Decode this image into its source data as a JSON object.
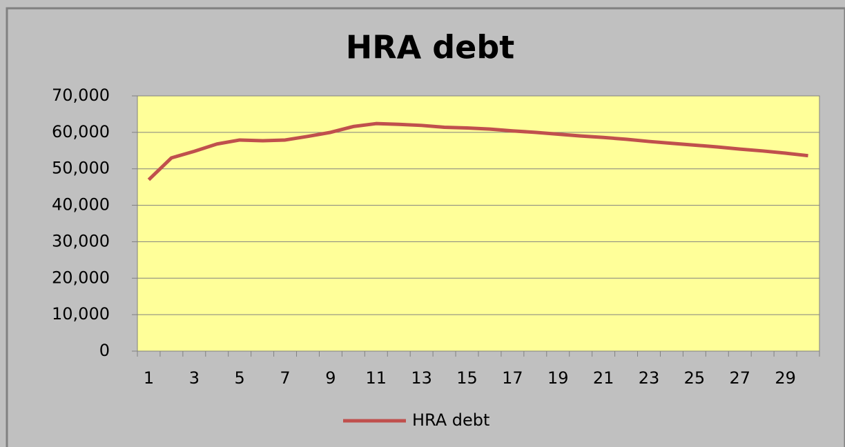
{
  "chart_data": {
    "type": "line",
    "title": "HRA debt",
    "categories": [
      "1",
      null,
      "3",
      null,
      "5",
      null,
      "7",
      null,
      "9",
      null,
      "11",
      null,
      "13",
      null,
      "15",
      null,
      "17",
      null,
      "19",
      null,
      "21",
      null,
      "23",
      null,
      "25",
      null,
      "27",
      null,
      "29",
      null
    ],
    "series": [
      {
        "name": "HRA debt",
        "color": "#c0504d",
        "values": [
          47000,
          53000,
          54800,
          56800,
          57900,
          57700,
          57900,
          58900,
          60000,
          61600,
          62400,
          62200,
          61900,
          61400,
          61200,
          60900,
          60400,
          60000,
          59500,
          59000,
          58600,
          58100,
          57500,
          57000,
          56500,
          56000,
          55400,
          54900,
          54300,
          53600
        ]
      }
    ],
    "ylim": [
      0,
      70000
    ],
    "yticks": [
      0,
      {
        "value": 10000,
        "label": "10,000"
      },
      {
        "value": 20000,
        "label": "20,000"
      },
      {
        "value": 30000,
        "label": "30,000"
      },
      {
        "value": 40000,
        "label": "40,000"
      },
      {
        "value": 50000,
        "label": "50,000"
      },
      {
        "value": 60000,
        "label": "60,000"
      },
      {
        "value": 70000,
        "label": "70,000"
      }
    ],
    "grid": true,
    "legend": "bottom",
    "plot_background": "#ffff99"
  }
}
